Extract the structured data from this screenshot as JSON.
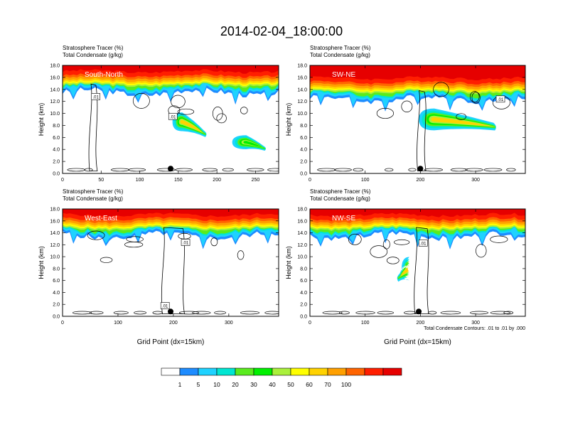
{
  "figure": {
    "title": "2014-02-04_18:00:00",
    "footnote": "Total Condensate Contours: .01 to .01 by .000"
  },
  "colorbar": {
    "colors": [
      "#ffffff",
      "#1e8cff",
      "#1fd2ff",
      "#00e6d2",
      "#5aeb1e",
      "#00f000",
      "#aaf03c",
      "#ffff00",
      "#ffd200",
      "#ffa000",
      "#ff6400",
      "#ff1e00",
      "#e60000"
    ],
    "labels": [
      "1",
      "5",
      "10",
      "20",
      "30",
      "40",
      "50",
      "60",
      "70",
      "100"
    ]
  },
  "chart_data": [
    {
      "type": "contour",
      "panel_label": "South-North",
      "title_left_1": "Stratosphere Tracer   (%)",
      "title_left_2": "Total Condensate   (g/kg)",
      "xlabel": "",
      "ylabel": "Height (km)",
      "xlim": [
        0,
        280
      ],
      "xticks": [
        "0",
        "50",
        "100",
        "150",
        "200",
        "250"
      ],
      "xtick_values": [
        0,
        50,
        100,
        150,
        200,
        250
      ],
      "ylim": [
        0,
        18
      ],
      "yticks": [
        "0.0",
        "2.0",
        "4.0",
        "6.0",
        "8.0",
        "10.0",
        "12.0",
        "14.0",
        "16.0",
        "18.0"
      ],
      "tropopause_km": 15.3,
      "marker_x": 140,
      "contour_label": ".01",
      "contour_label_positions": [
        [
          43,
          12.8
        ],
        [
          143,
          9.5
        ]
      ],
      "tracer_blobs": [
        {
          "x": 155,
          "y": 8.6,
          "rx": 9,
          "ry": 1.2,
          "peak": 60,
          "tail_x": 185,
          "tail_y": 6.6
        },
        {
          "x": 238,
          "y": 5.2,
          "rx": 13,
          "ry": 0.9,
          "peak": 30,
          "tail_x": 262,
          "tail_y": 4.2
        }
      ],
      "towers": [
        [
          35,
          45
        ]
      ]
    },
    {
      "type": "contour",
      "panel_label": "SW-NE",
      "title_left_1": "Stratosphere Tracer   (%)",
      "title_left_2": "Total Condensate   (g/kg)",
      "xlabel": "",
      "ylabel": "Height (km)",
      "xlim": [
        0,
        390
      ],
      "xticks": [
        "0",
        "100",
        "200",
        "300"
      ],
      "xtick_values": [
        0,
        100,
        200,
        300
      ],
      "ylim": [
        0,
        18
      ],
      "yticks": [
        "0.0",
        "2.0",
        "4.0",
        "6.0",
        "8.0",
        "10.0",
        "12.0",
        "14.0",
        "16.0",
        "18.0"
      ],
      "tropopause_km": 14.2,
      "marker_x": 200,
      "contour_label": ".01",
      "contour_label_positions": [
        [
          345,
          12.4
        ]
      ],
      "tracer_blobs": [
        {
          "x": 225,
          "y": 9.0,
          "rx": 20,
          "ry": 1.4,
          "peak": 60,
          "tail_x": 335,
          "tail_y": 7.8
        }
      ],
      "towers": [
        [
          195,
          210
        ]
      ]
    },
    {
      "type": "contour",
      "panel_label": "West-East",
      "title_left_1": "Stratosphere Tracer   (%)",
      "title_left_2": "Total Condensate   (g/kg)",
      "xlabel": "Grid Point (dx=15km)",
      "ylabel": "Height (km)",
      "xlim": [
        0,
        390
      ],
      "xticks": [
        "0",
        "100",
        "200",
        "300"
      ],
      "xtick_values": [
        0,
        100,
        200,
        300
      ],
      "ylim": [
        0,
        18
      ],
      "yticks": [
        "0.0",
        "2.0",
        "4.0",
        "6.0",
        "8.0",
        "10.0",
        "12.0",
        "14.0",
        "16.0",
        "18.0"
      ],
      "tropopause_km": 15.3,
      "marker_x": 195,
      "contour_label": ".01",
      "contour_label_positions": [
        [
          222,
          12.4
        ],
        [
          185,
          1.8
        ]
      ],
      "tracer_blobs": [],
      "towers": [
        [
          180,
          220
        ]
      ]
    },
    {
      "type": "contour",
      "panel_label": "NW-SE",
      "title_left_1": "Stratosphere Tracer   (%)",
      "title_left_2": "Total Condensate   (g/kg)",
      "xlabel": "Grid Point (dx=15km)",
      "ylabel": "Height (km)",
      "xlim": [
        0,
        390
      ],
      "xticks": [
        "0",
        "100",
        "200",
        "300"
      ],
      "xtick_values": [
        0,
        100,
        200,
        300
      ],
      "ylim": [
        0,
        18
      ],
      "yticks": [
        "0.0",
        "2.0",
        "4.0",
        "6.0",
        "8.0",
        "10.0",
        "12.0",
        "14.0",
        "16.0",
        "18.0"
      ],
      "tropopause_km": 15.3,
      "marker_x": 197,
      "contour_label": ".01",
      "contour_label_positions": [
        [
          205,
          12.3
        ]
      ],
      "tracer_blobs": [
        {
          "x": 180,
          "y": 8.0,
          "rx": 10,
          "ry": 1.5,
          "peak": 60,
          "tail_x": 160,
          "tail_y": 6.5
        }
      ],
      "towers": [
        [
          190,
          215
        ]
      ]
    }
  ]
}
